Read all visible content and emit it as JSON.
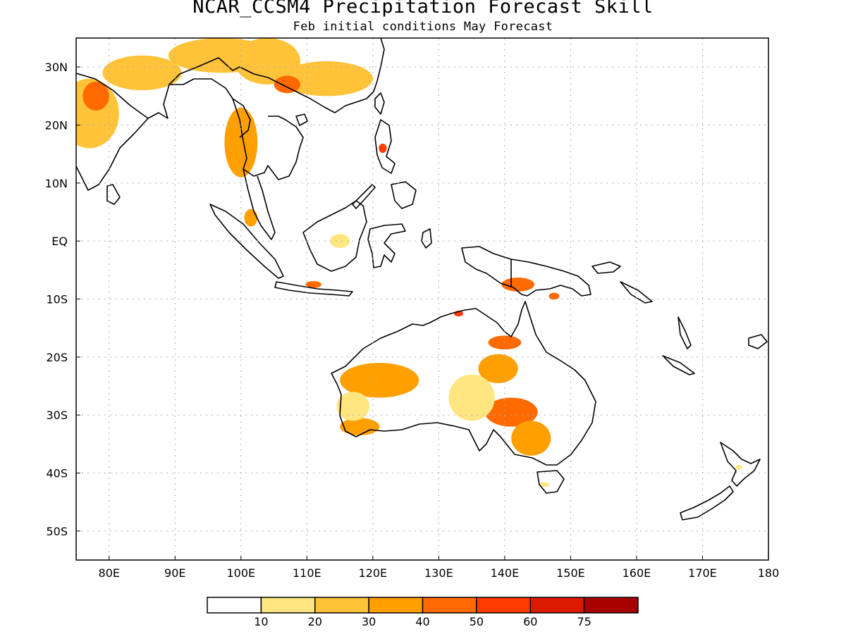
{
  "title": "NCAR_CCSM4 Precipitation Forecast Skill",
  "subtitle": "Feb initial conditions  May Forecast",
  "map": {
    "lon_range": [
      75,
      180
    ],
    "lat_range": [
      -55,
      35
    ],
    "lon_ticks": [
      {
        "value": 80,
        "label": "80E"
      },
      {
        "value": 90,
        "label": "90E"
      },
      {
        "value": 100,
        "label": "100E"
      },
      {
        "value": 110,
        "label": "110E"
      },
      {
        "value": 120,
        "label": "120E"
      },
      {
        "value": 130,
        "label": "130E"
      },
      {
        "value": 140,
        "label": "140E"
      },
      {
        "value": 150,
        "label": "150E"
      },
      {
        "value": 160,
        "label": "160E"
      },
      {
        "value": 170,
        "label": "170E"
      },
      {
        "value": 180,
        "label": "180"
      }
    ],
    "lat_ticks": [
      {
        "value": 30,
        "label": "30N"
      },
      {
        "value": 20,
        "label": "20N"
      },
      {
        "value": 10,
        "label": "10N"
      },
      {
        "value": 0,
        "label": "EQ"
      },
      {
        "value": -10,
        "label": "10S"
      },
      {
        "value": -20,
        "label": "20S"
      },
      {
        "value": -30,
        "label": "30S"
      },
      {
        "value": -40,
        "label": "40S"
      },
      {
        "value": -50,
        "label": "50S"
      }
    ],
    "grid": "dotted"
  },
  "colorbar": {
    "colors": [
      "#ffffff",
      "#ffe680",
      "#ffc33a",
      "#ff9f00",
      "#ff6a00",
      "#ff3b00",
      "#dc1a00",
      "#a80000"
    ],
    "labels": [
      "10",
      "20",
      "30",
      "40",
      "50",
      "60",
      "75"
    ]
  },
  "skill_regions": [
    {
      "name": "india",
      "level": 2,
      "lon": 77,
      "lat": 22,
      "rx": 4.5,
      "ry": 6
    },
    {
      "name": "india-core",
      "level": 4,
      "lon": 78,
      "lat": 25,
      "rx": 2,
      "ry": 2.5
    },
    {
      "name": "india-north",
      "level": 2,
      "lon": 85,
      "lat": 29,
      "rx": 6,
      "ry": 3
    },
    {
      "name": "tibet",
      "level": 2,
      "lon": 97,
      "lat": 32,
      "rx": 8,
      "ry": 3
    },
    {
      "name": "sw-china",
      "level": 2,
      "lon": 104,
      "lat": 31,
      "rx": 5,
      "ry": 4
    },
    {
      "name": "south-china",
      "level": 2,
      "lon": 113,
      "lat": 28,
      "rx": 7,
      "ry": 3
    },
    {
      "name": "south-china-core",
      "level": 4,
      "lon": 107,
      "lat": 27,
      "rx": 2,
      "ry": 1.5
    },
    {
      "name": "indochina",
      "level": 3,
      "lon": 100,
      "lat": 17,
      "rx": 2.5,
      "ry": 6
    },
    {
      "name": "malay",
      "level": 3,
      "lon": 101.5,
      "lat": 4,
      "rx": 1,
      "ry": 1.5
    },
    {
      "name": "philippines",
      "level": 5,
      "lon": 121.5,
      "lat": 16,
      "rx": 0.6,
      "ry": 0.8
    },
    {
      "name": "borneo",
      "level": 1,
      "lon": 115,
      "lat": 0,
      "rx": 1.5,
      "ry": 1.2
    },
    {
      "name": "java",
      "level": 4,
      "lon": 111,
      "lat": -7.5,
      "rx": 1.2,
      "ry": 0.6
    },
    {
      "name": "new-guinea",
      "level": 4,
      "lon": 142,
      "lat": -7.5,
      "rx": 2.5,
      "ry": 1.2
    },
    {
      "name": "png-east",
      "level": 4,
      "lon": 147.5,
      "lat": -9.5,
      "rx": 0.8,
      "ry": 0.6
    },
    {
      "name": "top-end",
      "level": 5,
      "lon": 133,
      "lat": -12.5,
      "rx": 0.7,
      "ry": 0.5
    },
    {
      "name": "gulf",
      "level": 4,
      "lon": 140,
      "lat": -17.5,
      "rx": 2.5,
      "ry": 1.2
    },
    {
      "name": "wa-north",
      "level": 3,
      "lon": 121,
      "lat": -24,
      "rx": 6,
      "ry": 3
    },
    {
      "name": "wa-south",
      "level": 3,
      "lon": 118,
      "lat": -32,
      "rx": 3,
      "ry": 1.5
    },
    {
      "name": "wa-west",
      "level": 1,
      "lon": 117,
      "lat": -28.5,
      "rx": 2.5,
      "ry": 2.5
    },
    {
      "name": "nt-south",
      "level": 3,
      "lon": 139,
      "lat": -22,
      "rx": 3,
      "ry": 2.5
    },
    {
      "name": "sa-core",
      "level": 4,
      "lon": 141,
      "lat": -29.5,
      "rx": 4,
      "ry": 2.5
    },
    {
      "name": "sa-east",
      "level": 3,
      "lon": 144,
      "lat": -34,
      "rx": 3,
      "ry": 3
    },
    {
      "name": "qld-west",
      "level": 1,
      "lon": 135,
      "lat": -27,
      "rx": 3.5,
      "ry": 4
    },
    {
      "name": "tasmania",
      "level": 1,
      "lon": 146,
      "lat": -42,
      "rx": 0.8,
      "ry": 0.4
    },
    {
      "name": "nz-north",
      "level": 1,
      "lon": 175.5,
      "lat": -39,
      "rx": 0.5,
      "ry": 0.4
    }
  ]
}
